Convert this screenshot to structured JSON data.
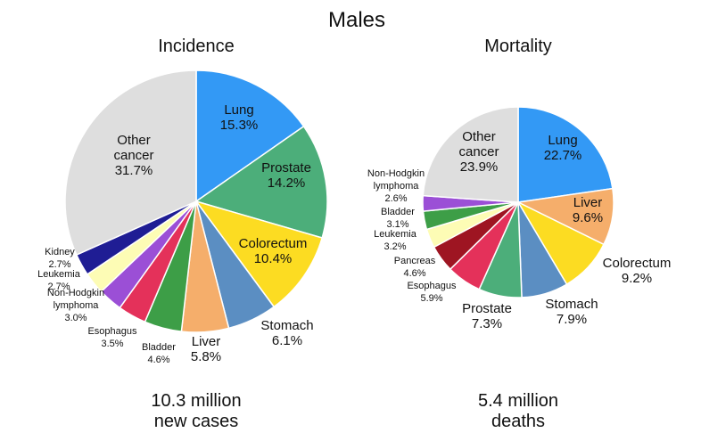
{
  "figure_title": "Males",
  "chart_data": [
    {
      "type": "pie",
      "title": "Incidence",
      "total_line1": "10.3 million",
      "total_line2": "new cases",
      "slices": [
        {
          "label": "Lung",
          "value": 15.3,
          "pct": "15.3%",
          "color": "#3399f5",
          "placement": "inside"
        },
        {
          "label": "Prostate",
          "value": 14.2,
          "pct": "14.2%",
          "color": "#4cae7a",
          "placement": "inside"
        },
        {
          "label": "Colorectum",
          "value": 10.4,
          "pct": "10.4%",
          "color": "#fcdc22",
          "placement": "inside"
        },
        {
          "label": "Stomach",
          "value": 6.1,
          "pct": "6.1%",
          "color": "#5b8ec2",
          "placement": "outside"
        },
        {
          "label": "Liver",
          "value": 5.8,
          "pct": "5.8%",
          "color": "#f5ae6b",
          "placement": "outside"
        },
        {
          "label": "Bladder",
          "value": 4.6,
          "pct": "4.6%",
          "color": "#3d9e47",
          "placement": "outside"
        },
        {
          "label": "Esophagus",
          "value": 3.5,
          "pct": "3.5%",
          "color": "#e4315a",
          "placement": "outside"
        },
        {
          "label": "Non-Hodgkin lymphoma",
          "value": 3.0,
          "pct": "3.0%",
          "color": "#9b4fd6",
          "placement": "outside"
        },
        {
          "label": "Leukemia",
          "value": 2.7,
          "pct": "2.7%",
          "color": "#fdfcb5",
          "placement": "outside"
        },
        {
          "label": "Kidney",
          "value": 2.7,
          "pct": "2.7%",
          "color": "#1f1d94",
          "placement": "outside"
        },
        {
          "label": "Other cancer",
          "value": 31.7,
          "pct": "31.7%",
          "color": "#dedede",
          "placement": "inside"
        }
      ]
    },
    {
      "type": "pie",
      "title": "Mortality",
      "total_line1": "5.4 million",
      "total_line2": "deaths",
      "slices": [
        {
          "label": "Lung",
          "value": 22.7,
          "pct": "22.7%",
          "color": "#3399f5",
          "placement": "inside"
        },
        {
          "label": "Liver",
          "value": 9.6,
          "pct": "9.6%",
          "color": "#f5ae6b",
          "placement": "inside"
        },
        {
          "label": "Colorectum",
          "value": 9.2,
          "pct": "9.2%",
          "color": "#fcdc22",
          "placement": "outside"
        },
        {
          "label": "Stomach",
          "value": 7.9,
          "pct": "7.9%",
          "color": "#5b8ec2",
          "placement": "outside"
        },
        {
          "label": "Prostate",
          "value": 7.3,
          "pct": "7.3%",
          "color": "#4cae7a",
          "placement": "outside"
        },
        {
          "label": "Esophagus",
          "value": 5.9,
          "pct": "5.9%",
          "color": "#e4315a",
          "placement": "outside"
        },
        {
          "label": "Pancreas",
          "value": 4.6,
          "pct": "4.6%",
          "color": "#9e1522",
          "placement": "outside"
        },
        {
          "label": "Leukemia",
          "value": 3.2,
          "pct": "3.2%",
          "color": "#fdfcb5",
          "placement": "outside"
        },
        {
          "label": "Bladder",
          "value": 3.1,
          "pct": "3.1%",
          "color": "#3d9e47",
          "placement": "outside"
        },
        {
          "label": "Non-Hodgkin lymphoma",
          "value": 2.6,
          "pct": "2.6%",
          "color": "#9b4fd6",
          "placement": "outside"
        },
        {
          "label": "Other cancer",
          "value": 23.9,
          "pct": "23.9%",
          "color": "#dedede",
          "placement": "inside"
        }
      ]
    }
  ]
}
